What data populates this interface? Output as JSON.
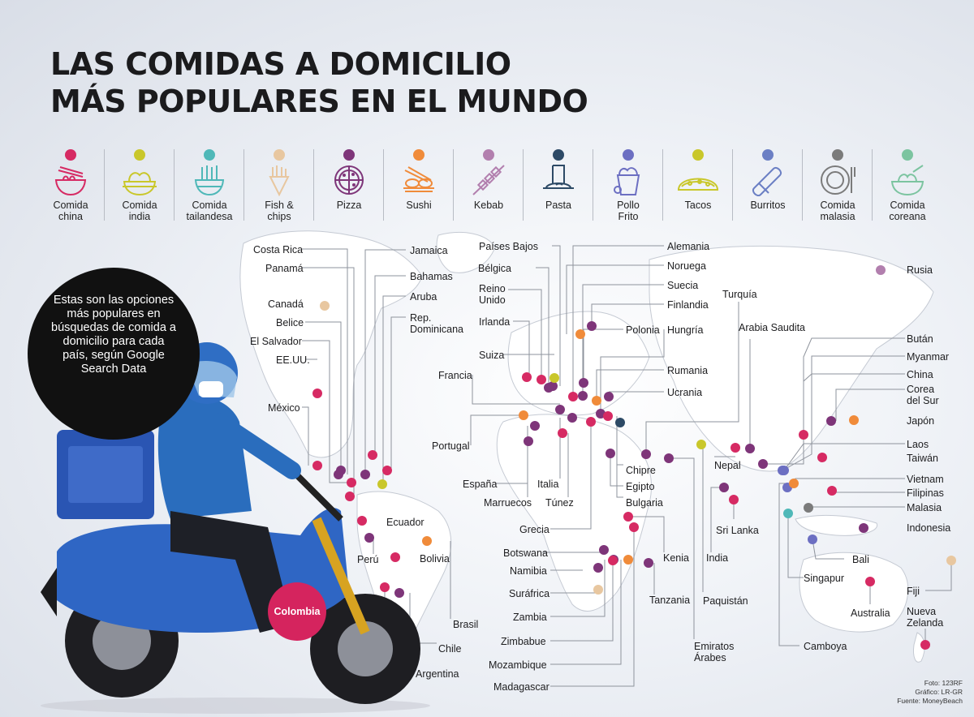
{
  "title": {
    "line1": "LAS COMIDAS A DOMICILIO",
    "line2": "MÁS POPULARES EN EL MUNDO"
  },
  "legend": [
    {
      "label": "Comida\nchina",
      "color": "#d62a63",
      "icon": "noodle-bowl-icon"
    },
    {
      "label": "Comida\nindia",
      "color": "#c9c72b",
      "icon": "curry-bowl-icon"
    },
    {
      "label": "Comida\ntailandesa",
      "color": "#4fb8b8",
      "icon": "thai-noodles-icon"
    },
    {
      "label": "Fish &\nchips",
      "color": "#e8c7a0",
      "icon": "fries-cone-icon"
    },
    {
      "label": "Pizza",
      "color": "#7e3579",
      "icon": "pizza-icon"
    },
    {
      "label": "Sushi",
      "color": "#f08b3a",
      "icon": "sushi-icon"
    },
    {
      "label": "Kebab",
      "color": "#b27fae",
      "icon": "kebab-skewer-icon"
    },
    {
      "label": "Pasta",
      "color": "#2d4a66",
      "icon": "pasta-plate-icon"
    },
    {
      "label": "Pollo\nFrito",
      "color": "#6c6fc2",
      "icon": "fried-chicken-bucket-icon"
    },
    {
      "label": "Tacos",
      "color": "#c9c72b",
      "icon": "taco-icon"
    },
    {
      "label": "Burritos",
      "color": "#6b7fc4",
      "icon": "burrito-icon"
    },
    {
      "label": "Comida\nmalasia",
      "color": "#7b7b7b",
      "icon": "malaysian-plate-icon"
    },
    {
      "label": "Comida\ncoreana",
      "color": "#7cc4a0",
      "icon": "korean-bowl-icon"
    }
  ],
  "bubble_text": "Estas son las opciones más populares en búsquedas de comida a domicilio para cada país, según Google Search Data",
  "highlight_country": "Colombia",
  "countries": [
    {
      "name": "Costa Rica",
      "color": "#7e3579"
    },
    {
      "name": "Panamá",
      "color": "#d62a63"
    },
    {
      "name": "Canadá",
      "color": "#e8c7a0"
    },
    {
      "name": "Belice",
      "color": "#7e3579"
    },
    {
      "name": "El Salvador",
      "color": "#d62a63"
    },
    {
      "name": "EE.UU.",
      "color": "#d62a63"
    },
    {
      "name": "México",
      "color": "#d62a63"
    },
    {
      "name": "Jamaica",
      "color": "#7e3579"
    },
    {
      "name": "Bahamas",
      "color": "#d62a63"
    },
    {
      "name": "Aruba",
      "color": "#c9c72b"
    },
    {
      "name": "Rep.\nDominicana",
      "color": "#d62a63"
    },
    {
      "name": "Ecuador",
      "color": "#d62a63"
    },
    {
      "name": "Perú",
      "color": "#7e3579"
    },
    {
      "name": "Bolivia",
      "color": "#d62a63"
    },
    {
      "name": "Brasil",
      "color": "#f08b3a"
    },
    {
      "name": "Chile",
      "color": "#7e3579"
    },
    {
      "name": "Argentina",
      "color": "#d62a63"
    },
    {
      "name": "Países Bajos",
      "color": "#7e3579"
    },
    {
      "name": "Bélgica",
      "color": "#7e3579"
    },
    {
      "name": "Reino\nUnido",
      "color": "#d62a63"
    },
    {
      "name": "Irlanda",
      "color": "#d62a63"
    },
    {
      "name": "Suiza",
      "color": "#c9c72b"
    },
    {
      "name": "Francia",
      "color": "#7e3579"
    },
    {
      "name": "Portugal",
      "color": "#f08b3a"
    },
    {
      "name": "España",
      "color": "#7e3579"
    },
    {
      "name": "Marruecos",
      "color": "#7e3579"
    },
    {
      "name": "Italia",
      "color": "#7e3579"
    },
    {
      "name": "Túnez",
      "color": "#d62a63"
    },
    {
      "name": "Grecia",
      "color": "#d62a63"
    },
    {
      "name": "Alemania",
      "color": "#d62a63"
    },
    {
      "name": "Noruega",
      "color": "#f08b3a"
    },
    {
      "name": "Suecia",
      "color": "#7e3579"
    },
    {
      "name": "Finlandia",
      "color": "#7e3579"
    },
    {
      "name": "Polonia",
      "color": "#7e3579"
    },
    {
      "name": "Hungría",
      "color": "#7e3579"
    },
    {
      "name": "Rumania",
      "color": "#f08b3a"
    },
    {
      "name": "Ucrania",
      "color": "#7e3579"
    },
    {
      "name": "Turquía",
      "color": "#7e3579"
    },
    {
      "name": "Bulgaria",
      "color": "#d62a63"
    },
    {
      "name": "Chipre",
      "color": "#2d4a66"
    },
    {
      "name": "Egipto",
      "color": "#7e3579"
    },
    {
      "name": "Arabia Saudita",
      "color": "#7e3579"
    },
    {
      "name": "Emiratos\nÁrabes",
      "color": "#7e3579"
    },
    {
      "name": "Paquistán",
      "color": "#c9c72b"
    },
    {
      "name": "India",
      "color": "#7e3579"
    },
    {
      "name": "Sri Lanka",
      "color": "#d62a63"
    },
    {
      "name": "Nepal",
      "color": "#d62a63"
    },
    {
      "name": "Rusia",
      "color": "#b27fae"
    },
    {
      "name": "Bután",
      "color": "#7e3579"
    },
    {
      "name": "Myanmar",
      "color": "#6c6fc2"
    },
    {
      "name": "China",
      "color": "#d62a63"
    },
    {
      "name": "Corea\ndel Sur",
      "color": "#7e3579"
    },
    {
      "name": "Japón",
      "color": "#f08b3a"
    },
    {
      "name": "Laos",
      "color": "#6c6fc2"
    },
    {
      "name": "Taiwán",
      "color": "#d62a63"
    },
    {
      "name": "Vietnam",
      "color": "#6c6fc2"
    },
    {
      "name": "Filipinas",
      "color": "#d62a63"
    },
    {
      "name": "Malasia",
      "color": "#7b7b7b"
    },
    {
      "name": "Indonesia",
      "color": "#7e3579"
    },
    {
      "name": "Bali",
      "color": "#6c6fc2"
    },
    {
      "name": "Singapur",
      "color": "#4fb8b8"
    },
    {
      "name": "Camboya",
      "color": "#f08b3a"
    },
    {
      "name": "Australia",
      "color": "#d62a63"
    },
    {
      "name": "Fiji",
      "color": "#e8c7a0"
    },
    {
      "name": "Nueva\nZelanda",
      "color": "#d62a63"
    },
    {
      "name": "Kenia",
      "color": "#d62a63"
    },
    {
      "name": "Tanzania",
      "color": "#7e3579"
    },
    {
      "name": "Botswana",
      "color": "#7e3579"
    },
    {
      "name": "Namibia",
      "color": "#7e3579"
    },
    {
      "name": "Suráfrica",
      "color": "#e8c7a0"
    },
    {
      "name": "Zambia",
      "color": "#7e3579"
    },
    {
      "name": "Zimbabue",
      "color": "#d62a63"
    },
    {
      "name": "Mozambique",
      "color": "#f08b3a"
    },
    {
      "name": "Madagascar",
      "color": "#d62a63"
    }
  ],
  "credits": {
    "photo": "Foto: 123RF",
    "graphic": "Gráfico: LR-GR",
    "source": "Fuente: MoneyBeach"
  }
}
